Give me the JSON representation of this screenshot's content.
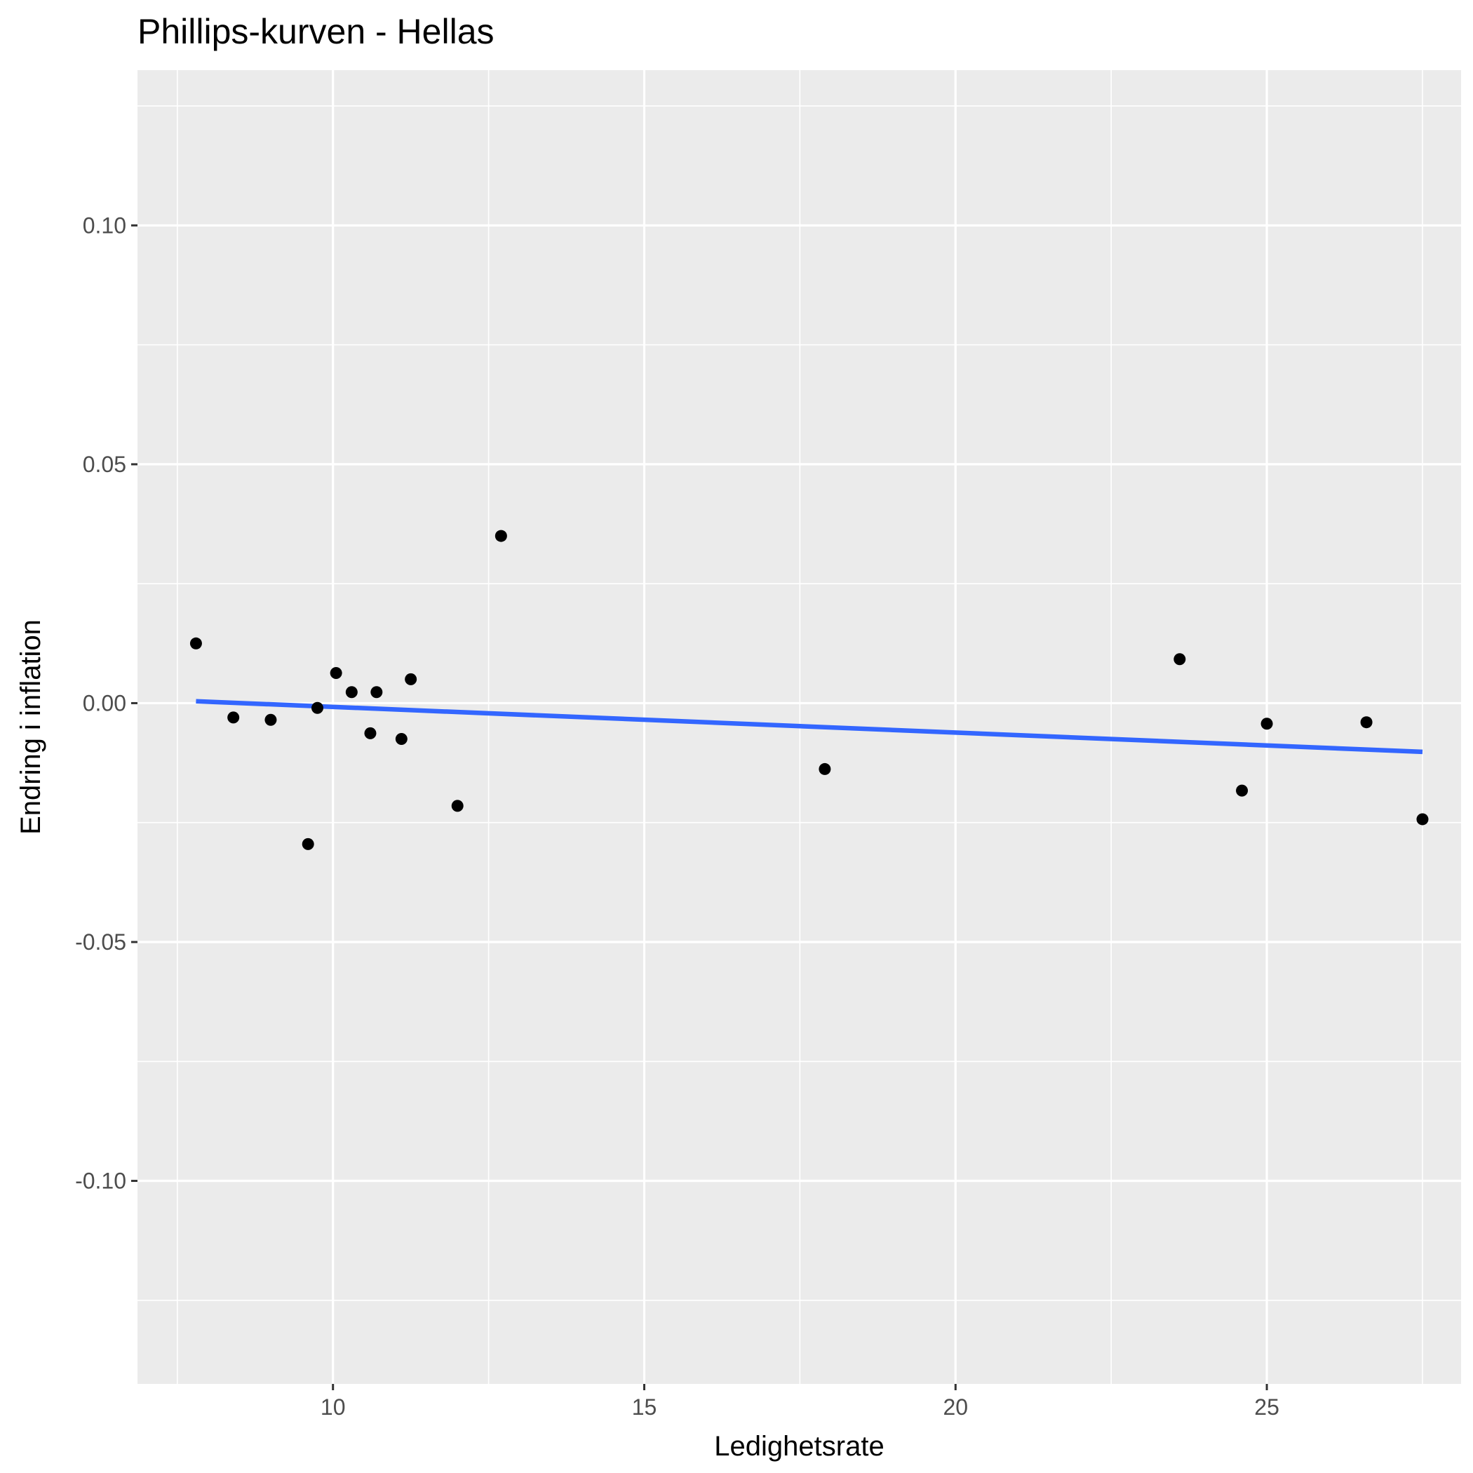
{
  "chart_data": {
    "type": "scatter",
    "title": "Phillips-kurven - Hellas",
    "xlabel": "Ledighetsrate",
    "ylabel": "Endring i inflation",
    "xlim": [
      6.86,
      28.12
    ],
    "ylim": [
      -0.1425,
      0.1325
    ],
    "x_ticks": [
      10,
      15,
      20,
      25
    ],
    "x_tick_labels": [
      "10",
      "15",
      "20",
      "25"
    ],
    "y_ticks": [
      -0.1,
      -0.05,
      0.0,
      0.05,
      0.1
    ],
    "y_tick_labels": [
      "-0.10",
      "-0.05",
      "0.00",
      "0.05",
      "0.10"
    ],
    "grid": true,
    "points": [
      {
        "x": 7.8,
        "y": 0.0125
      },
      {
        "x": 8.4,
        "y": -0.003
      },
      {
        "x": 9.0,
        "y": -0.0035
      },
      {
        "x": 9.6,
        "y": -0.0295
      },
      {
        "x": 9.75,
        "y": -0.001
      },
      {
        "x": 10.05,
        "y": 0.0063
      },
      {
        "x": 10.3,
        "y": 0.0023
      },
      {
        "x": 10.6,
        "y": -0.0063
      },
      {
        "x": 10.7,
        "y": 0.0023
      },
      {
        "x": 11.1,
        "y": -0.0075
      },
      {
        "x": 11.25,
        "y": 0.005
      },
      {
        "x": 12.0,
        "y": -0.0215
      },
      {
        "x": 12.7,
        "y": 0.035
      },
      {
        "x": 17.9,
        "y": -0.0138
      },
      {
        "x": 23.6,
        "y": 0.0092
      },
      {
        "x": 24.6,
        "y": -0.0183
      },
      {
        "x": 25.0,
        "y": -0.0043
      },
      {
        "x": 26.6,
        "y": -0.004
      },
      {
        "x": 27.5,
        "y": -0.0243
      }
    ],
    "trend_line": {
      "x": [
        7.8,
        27.5
      ],
      "y": [
        0.0004,
        -0.0102
      ]
    },
    "colors": {
      "panel": "#ebebeb",
      "grid": "#ffffff",
      "point": "#000000",
      "trend": "#3366ff"
    }
  }
}
